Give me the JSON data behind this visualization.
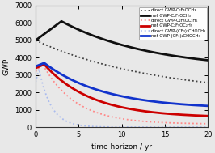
{
  "title": "",
  "xlabel": "time horizon / yr",
  "ylabel": "GWP",
  "xlim": [
    0,
    20
  ],
  "ylim": [
    0,
    7000
  ],
  "xticks": [
    0,
    5,
    10,
    15,
    20
  ],
  "yticks": [
    0,
    1000,
    2000,
    3000,
    4000,
    5000,
    6000,
    7000
  ],
  "legend_entries": [
    "direct GWP-C₂F₅OCH₃",
    "net GWP-C₂F₅OCH₃",
    "direct GWP-C₂F₅OC₂H₅",
    "net GWP-C₂F₅OC₂H₅",
    "direct GWP-(CF₃)₂CHOCH₃",
    "net GWP-(CF₃)₂CHOCH₃"
  ],
  "line_colors": [
    "#404040",
    "#101010",
    "#ff8888",
    "#cc0000",
    "#aabbee",
    "#1133cc"
  ],
  "line_styles": [
    "dotted",
    "solid",
    "dotted",
    "solid",
    "dotted",
    "solid"
  ],
  "line_widths": [
    1.3,
    2.0,
    1.3,
    2.0,
    1.3,
    2.0
  ],
  "background_color": "#e8e8e8",
  "figsize": [
    2.66,
    1.89
  ],
  "dpi": 100
}
